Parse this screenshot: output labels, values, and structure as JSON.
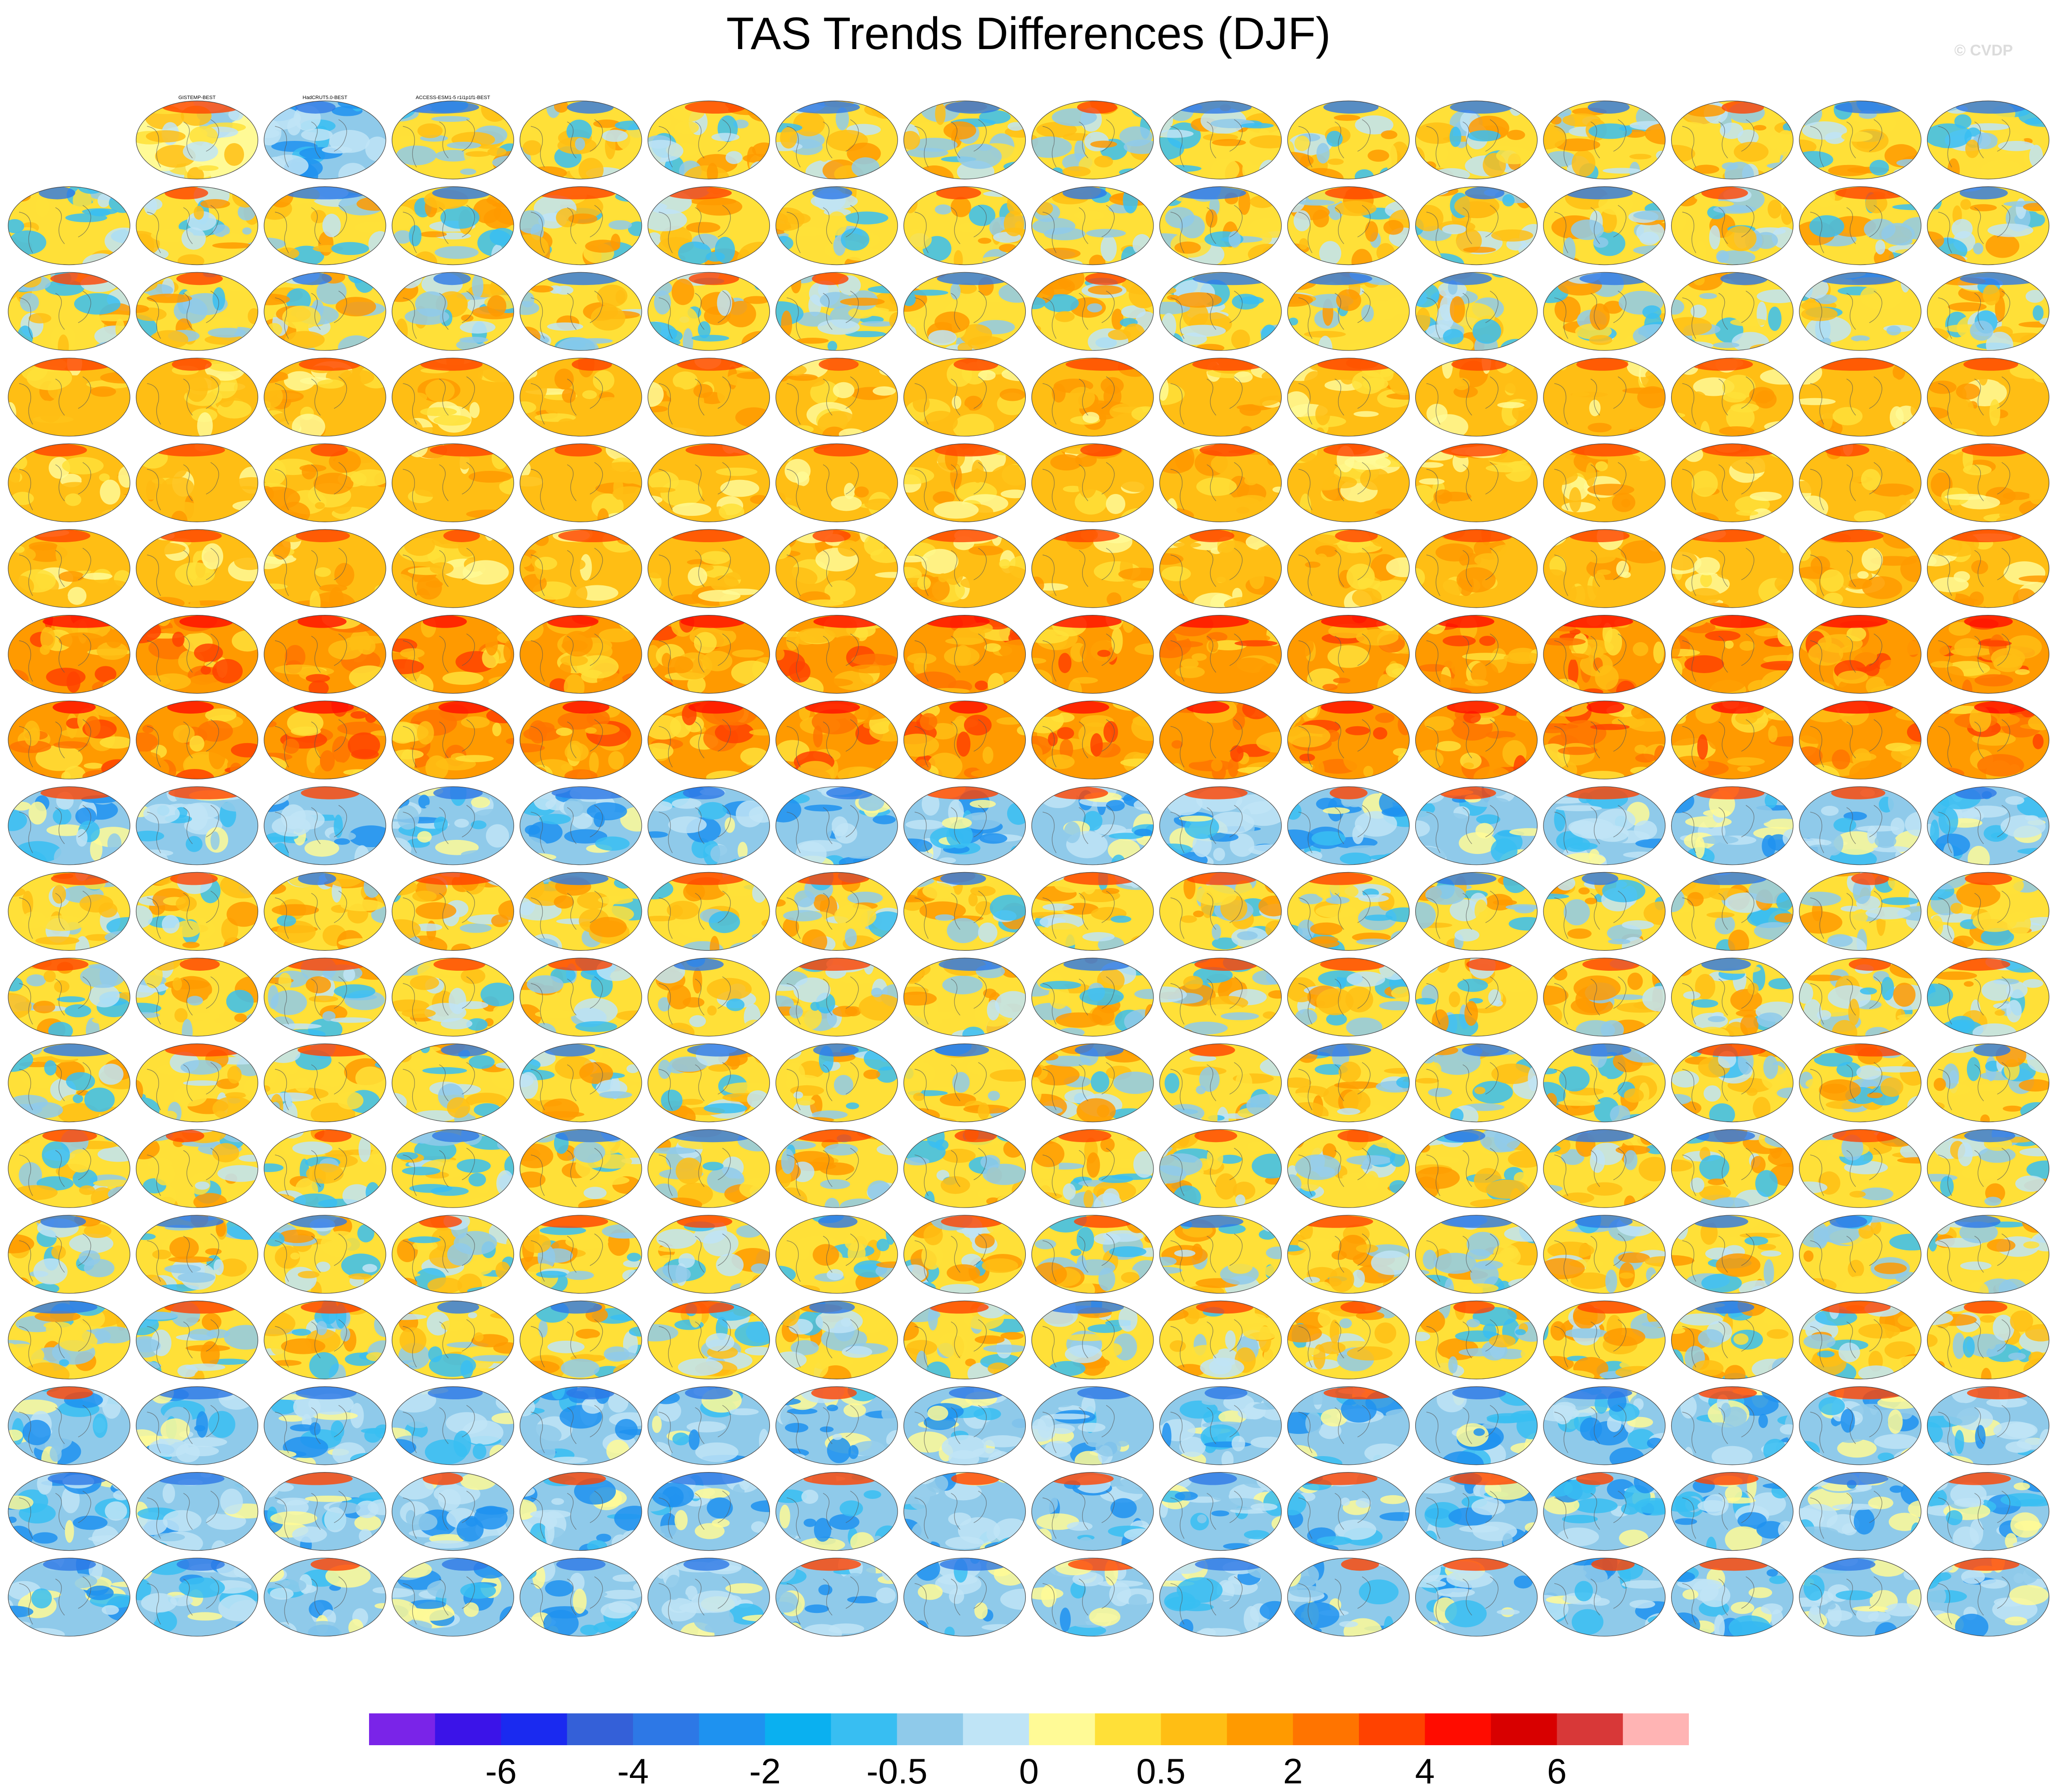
{
  "figure": {
    "title": "TAS Trends Differences (DJF)",
    "watermark": "© CVDP"
  },
  "colorbar": {
    "colors": [
      "#7a24e8",
      "#3b13e8",
      "#1a2af0",
      "#3460d8",
      "#2d78e6",
      "#1e92f0",
      "#0ab0f0",
      "#38bef2",
      "#8fcaea",
      "#bfe4f6",
      "#fffa96",
      "#ffe038",
      "#ffbe14",
      "#ff9a00",
      "#ff7400",
      "#ff4200",
      "#ff0c00",
      "#d80000",
      "#d83838",
      "#ffb4b4"
    ],
    "tick_labels": [
      "-6",
      "-4",
      "-2",
      "-0.5",
      "0",
      "0.5",
      "2",
      "4",
      "6"
    ],
    "tick_boundaries": [
      2,
      4,
      6,
      8,
      10,
      12,
      14,
      16,
      18
    ]
  },
  "chart_data": {
    "type": "heatmap",
    "title": "TAS Trends Differences (DJF)",
    "description": "Grid of global map panels (difference vs BEST); color scale",
    "legend": "bottom",
    "scale_labels": [
      "-6",
      "-4",
      "-2",
      "-0.5",
      "0",
      "0.5",
      "2",
      "4",
      "6"
    ],
    "panel_grid": {
      "rows": 18,
      "columns": 16,
      "empty_cells": [
        [
          0,
          0
        ]
      ]
    },
    "panels": [
      {
        "row": 0,
        "col": 1,
        "label": "GISTEMP-BEST",
        "tone": "warm-light"
      },
      {
        "row": 0,
        "col": 2,
        "label": "HadCRUT5.0-BEST",
        "tone": "cool"
      },
      {
        "row": 0,
        "col": 3,
        "label": "ACCESS-ESM1-5 r1i1p1f1-BEST",
        "tone": "mixed"
      }
    ],
    "row_tones": [
      "mixed",
      "mixed",
      "mixed",
      "warm",
      "warm",
      "warm",
      "warm-strong",
      "warm-strong",
      "cool",
      "mixed",
      "mixed",
      "mixed",
      "mixed",
      "mixed",
      "mixed",
      "cool",
      "cool",
      "cool"
    ]
  }
}
